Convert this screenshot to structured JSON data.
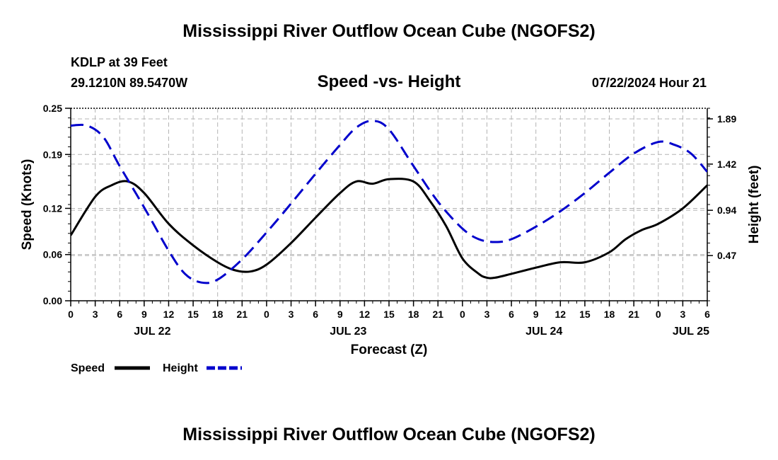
{
  "title": "Mississippi River Outflow Ocean Cube (NGOFS2)",
  "footer_title": "Mississippi River Outflow Ocean Cube (NGOFS2)",
  "station": {
    "name": "KDLP at 39 Feet",
    "coords": "29.1210N  89.5470W"
  },
  "datetime": "07/22/2024 Hour 21",
  "chart_data": {
    "type": "line",
    "title": "Speed -vs- Height",
    "xlabel": "Forecast (Z)",
    "ylabel": "Speed (Knots)",
    "y2label": "Height (feet)",
    "x_range": [
      0,
      78
    ],
    "ylim": [
      0,
      0.25
    ],
    "y2lim": [
      0.0,
      2.0
    ],
    "y_ticks": [
      0.0,
      0.06,
      0.12,
      0.19,
      0.25
    ],
    "y_tick_labels": [
      "0.00",
      "0.06",
      "0.12",
      "0.19",
      "0.25"
    ],
    "y2_ticks": [
      0.47,
      0.94,
      1.42,
      1.89
    ],
    "y2_tick_labels": [
      "0.47",
      "0.94",
      "1.42",
      "1.89"
    ],
    "x_ticks": [
      0,
      3,
      6,
      9,
      12,
      15,
      18,
      21,
      24,
      27,
      30,
      33,
      36,
      39,
      42,
      45,
      48,
      51,
      54,
      57,
      60,
      63,
      66,
      69,
      72,
      75,
      78
    ],
    "x_tick_labels": [
      "0",
      "3",
      "6",
      "9",
      "12",
      "15",
      "18",
      "21",
      "0",
      "3",
      "6",
      "9",
      "12",
      "15",
      "18",
      "21",
      "0",
      "3",
      "6",
      "9",
      "12",
      "15",
      "18",
      "21",
      "0",
      "3",
      "6"
    ],
    "date_labels": [
      {
        "x": 10,
        "label": "JUL 22"
      },
      {
        "x": 34,
        "label": "JUL 23"
      },
      {
        "x": 58,
        "label": "JUL 24"
      },
      {
        "x": 76,
        "label": "JUL 25"
      }
    ],
    "grid": true,
    "legend_position": "bottom-left",
    "series": [
      {
        "name": "Speed",
        "axis": "left",
        "color": "#000000",
        "style": "solid",
        "x": [
          0,
          3,
          5,
          7,
          9,
          12,
          15,
          18,
          20,
          22,
          24,
          27,
          30,
          33,
          35,
          37,
          39,
          42,
          44,
          46,
          48,
          50,
          51,
          52,
          54,
          57,
          60,
          63,
          66,
          68,
          70,
          72,
          75,
          78
        ],
        "y": [
          0.085,
          0.135,
          0.15,
          0.155,
          0.14,
          0.1,
          0.072,
          0.05,
          0.04,
          0.038,
          0.047,
          0.075,
          0.108,
          0.14,
          0.155,
          0.152,
          0.158,
          0.155,
          0.13,
          0.097,
          0.055,
          0.035,
          0.03,
          0.03,
          0.035,
          0.043,
          0.05,
          0.05,
          0.063,
          0.08,
          0.092,
          0.1,
          0.12,
          0.15
        ]
      },
      {
        "name": "Height",
        "axis": "right",
        "color": "#0000cc",
        "style": "dashed",
        "x": [
          0,
          2,
          4,
          6,
          9,
          12,
          14,
          16,
          18,
          21,
          24,
          27,
          30,
          33,
          35,
          37,
          39,
          42,
          45,
          48,
          50,
          52,
          54,
          57,
          60,
          63,
          66,
          69,
          72,
          74,
          76,
          78
        ],
        "y": [
          1.82,
          1.82,
          1.7,
          1.4,
          0.97,
          0.52,
          0.28,
          0.19,
          0.22,
          0.43,
          0.71,
          1.01,
          1.32,
          1.62,
          1.8,
          1.87,
          1.78,
          1.4,
          1.03,
          0.75,
          0.64,
          0.61,
          0.64,
          0.77,
          0.93,
          1.12,
          1.33,
          1.53,
          1.65,
          1.62,
          1.53,
          1.34
        ]
      }
    ]
  }
}
